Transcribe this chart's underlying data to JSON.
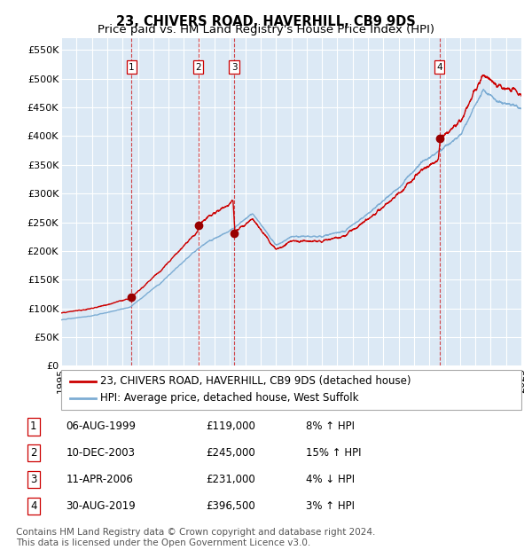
{
  "title": "23, CHIVERS ROAD, HAVERHILL, CB9 9DS",
  "subtitle": "Price paid vs. HM Land Registry's House Price Index (HPI)",
  "ylabel_ticks": [
    "£0",
    "£50K",
    "£100K",
    "£150K",
    "£200K",
    "£250K",
    "£300K",
    "£350K",
    "£400K",
    "£450K",
    "£500K",
    "£550K"
  ],
  "ytick_vals": [
    0,
    50000,
    100000,
    150000,
    200000,
    250000,
    300000,
    350000,
    400000,
    450000,
    500000,
    550000
  ],
  "xmin": 1995,
  "xmax": 2025,
  "ymin": 0,
  "ymax": 570000,
  "background_color": "#dce9f5",
  "grid_color": "#ffffff",
  "sale_dates": [
    1999.59,
    2003.94,
    2006.27,
    2019.66
  ],
  "sale_prices": [
    119000,
    245000,
    231000,
    396500
  ],
  "sale_labels": [
    "1",
    "2",
    "3",
    "4"
  ],
  "vline_color": "#cc0000",
  "hpi_line_color": "#7dadd4",
  "price_line_color": "#cc0000",
  "dot_color": "#990000",
  "legend_items": [
    {
      "label": "23, CHIVERS ROAD, HAVERHILL, CB9 9DS (detached house)",
      "color": "#cc0000"
    },
    {
      "label": "HPI: Average price, detached house, West Suffolk",
      "color": "#7dadd4"
    }
  ],
  "table_rows": [
    {
      "num": "1",
      "date": "06-AUG-1999",
      "price": "£119,000",
      "hpi": "8% ↑ HPI"
    },
    {
      "num": "2",
      "date": "10-DEC-2003",
      "price": "£245,000",
      "hpi": "15% ↑ HPI"
    },
    {
      "num": "3",
      "date": "11-APR-2006",
      "price": "£231,000",
      "hpi": "4% ↓ HPI"
    },
    {
      "num": "4",
      "date": "30-AUG-2019",
      "price": "£396,500",
      "hpi": "3% ↑ HPI"
    }
  ],
  "footer": "Contains HM Land Registry data © Crown copyright and database right 2024.\nThis data is licensed under the Open Government Licence v3.0.",
  "title_fontsize": 10.5,
  "subtitle_fontsize": 9.5,
  "tick_fontsize": 8,
  "legend_fontsize": 8.5,
  "table_fontsize": 8.5,
  "footer_fontsize": 7.5
}
